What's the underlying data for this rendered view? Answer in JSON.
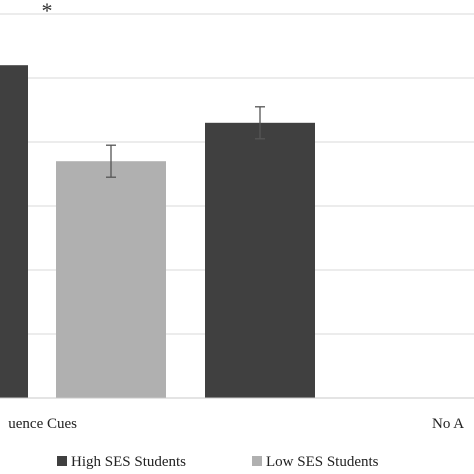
{
  "chart_data": {
    "type": "bar",
    "title": "",
    "xlabel": "",
    "ylabel": "",
    "ylim": [
      0,
      6
    ],
    "categories": [
      "uence Cues",
      "No A"
    ],
    "series": [
      {
        "name": "High SES Students",
        "color": "#404040",
        "values": [
          5.2,
          4.3
        ],
        "errors": [
          null,
          0.25
        ]
      },
      {
        "name": "Low SES Students",
        "color": "#b0b0b0",
        "values": [
          3.7,
          null
        ],
        "errors": [
          0.25,
          null
        ]
      }
    ],
    "annotations": [
      {
        "text": "*",
        "category_index": 0
      }
    ],
    "grid": true,
    "legend": "bottom"
  }
}
